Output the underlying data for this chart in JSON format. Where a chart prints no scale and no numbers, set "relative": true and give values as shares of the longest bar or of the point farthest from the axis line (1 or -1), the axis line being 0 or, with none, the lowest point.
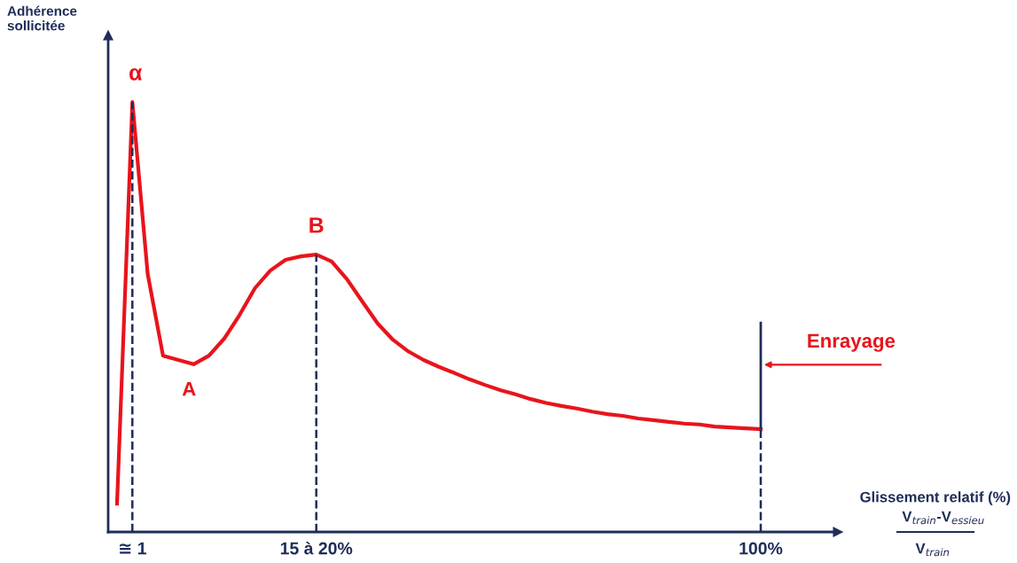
{
  "chart_data": {
    "type": "line",
    "relative": true,
    "categories": [
      null,
      "≅ 1",
      null,
      null,
      null,
      null,
      null,
      null,
      null,
      null,
      null,
      null,
      null,
      "15 à 20%",
      null,
      null,
      null,
      null,
      null,
      null,
      null,
      null,
      null,
      null,
      null,
      null,
      null,
      null,
      null,
      null,
      null,
      null,
      null,
      null,
      null,
      null,
      null,
      null,
      null,
      null,
      null,
      null,
      "100%"
    ],
    "series": [
      {
        "color": "#e8141c",
        "values": [
          0.066,
          1.0,
          0.6,
          0.41,
          0.4,
          0.39,
          0.41,
          0.45,
          0.505,
          0.567,
          0.608,
          0.633,
          0.641,
          0.645,
          0.629,
          0.588,
          0.536,
          0.485,
          0.447,
          0.42,
          0.4,
          0.384,
          0.37,
          0.355,
          0.342,
          0.33,
          0.32,
          0.309,
          0.3,
          0.293,
          0.287,
          0.28,
          0.274,
          0.27,
          0.264,
          0.26,
          0.256,
          0.252,
          0.25,
          0.245,
          0.243,
          0.241,
          0.239
        ]
      }
    ],
    "ref_lines": [
      {
        "axis": "x",
        "value": "≅ 1",
        "line_style": "dashed",
        "color": "#1f2d5a"
      },
      {
        "axis": "x",
        "value": "15 à 20%",
        "line_style": "dashed",
        "color": "#1f2d5a"
      },
      {
        "axis": "x",
        "value": "100%",
        "line_style": "dashed",
        "color": "#1f2d5a"
      }
    ],
    "annotations": [
      {
        "text": "α",
        "x": "≅ 1",
        "y": 1.0
      },
      "A",
      {
        "text": "B",
        "x": "15 à 20%",
        "y": 0.645
      },
      "Enrayage",
      "Adhérence\nsollicitée",
      "Glissement relatif (%)",
      "V$_{train}$-V$_{essieu}$",
      "V$_{train}$"
    ],
    "marker": "none",
    "line_style": "solid",
    "grid": false,
    "legend": false
  }
}
